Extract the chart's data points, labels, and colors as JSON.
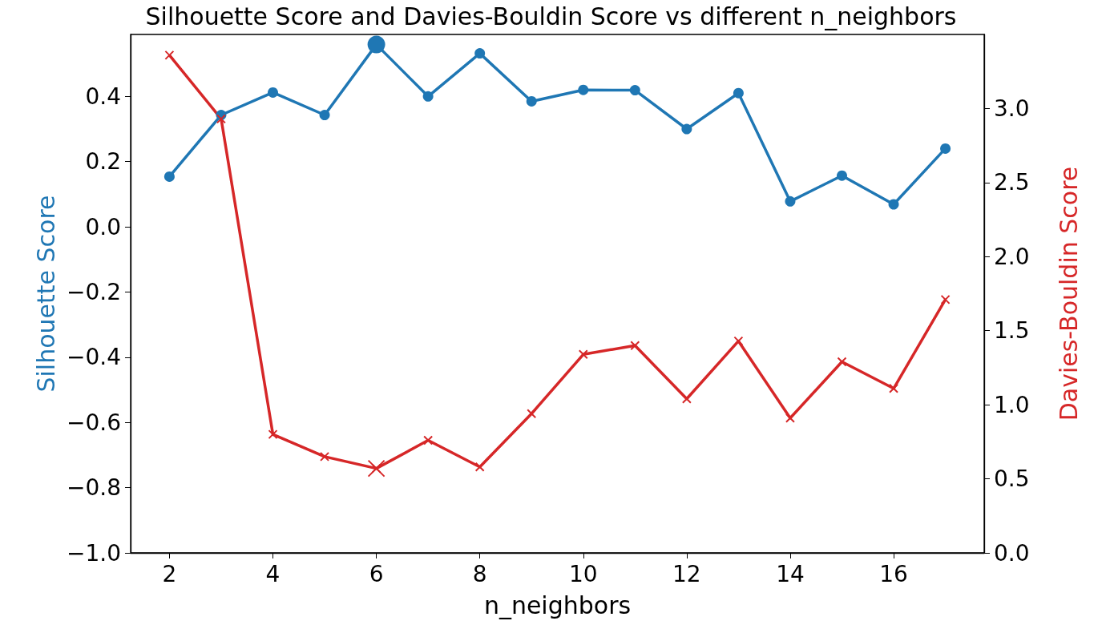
{
  "chart_data": {
    "type": "line",
    "title": "Silhouette Score and Davies-Bouldin Score vs different n_neighbors",
    "xlabel": "n_neighbors",
    "ylabel": "Silhouette Score",
    "y2label": "Davies-Bouldin Score",
    "x": [
      2,
      3,
      4,
      5,
      6,
      7,
      8,
      9,
      10,
      11,
      12,
      13,
      14,
      15,
      16,
      17
    ],
    "xlim": [
      1.25,
      17.75
    ],
    "xticks": [
      2,
      4,
      6,
      8,
      10,
      12,
      14,
      16
    ],
    "ylim": [
      -1.0,
      0.59
    ],
    "yticks": [
      {
        "value": -1.0,
        "label": "−1.0"
      },
      {
        "value": -0.8,
        "label": "−0.8"
      },
      {
        "value": -0.6,
        "label": "−0.6"
      },
      {
        "value": -0.4,
        "label": "−0.4"
      },
      {
        "value": -0.2,
        "label": "−0.2"
      },
      {
        "value": 0,
        "label": "0.0"
      },
      {
        "value": 0.2,
        "label": "0.2"
      },
      {
        "value": 0.4,
        "label": "0.4"
      }
    ],
    "y2lim": [
      0,
      3.5
    ],
    "y2ticks": [
      {
        "value": 0,
        "label": "0.0"
      },
      {
        "value": 0.5,
        "label": "0.5"
      },
      {
        "value": 1,
        "label": "1.0"
      },
      {
        "value": 1.5,
        "label": "1.5"
      },
      {
        "value": 2,
        "label": "2.0"
      },
      {
        "value": 2.5,
        "label": "2.5"
      },
      {
        "value": 3,
        "label": "3.0"
      }
    ],
    "grid": false,
    "series": [
      {
        "color": "#1f77b4",
        "marker": "circle",
        "values": [
          0.154,
          0.343,
          0.412,
          0.343,
          0.559,
          0.4,
          0.532,
          0.385,
          0.42,
          0.419,
          0.3,
          0.41,
          0.078,
          0.157,
          0.069,
          0.24
        ]
      },
      {
        "color": "#d62728",
        "marker": "cross",
        "axis": "y2",
        "values": [
          3.36,
          2.93,
          0.8,
          0.65,
          0.57,
          0.76,
          0.58,
          0.94,
          1.34,
          1.4,
          1.04,
          1.43,
          0.91,
          1.29,
          1.11,
          1.71
        ]
      },
      {
        "type": "scatter",
        "color": "#1f77b4",
        "marker": "circle",
        "x": [
          6
        ],
        "values": [
          0.559
        ]
      },
      {
        "type": "scatter",
        "color": "#d62728",
        "marker": "cross",
        "axis": "y2",
        "x": [
          6
        ],
        "values": [
          0.57
        ]
      }
    ]
  }
}
